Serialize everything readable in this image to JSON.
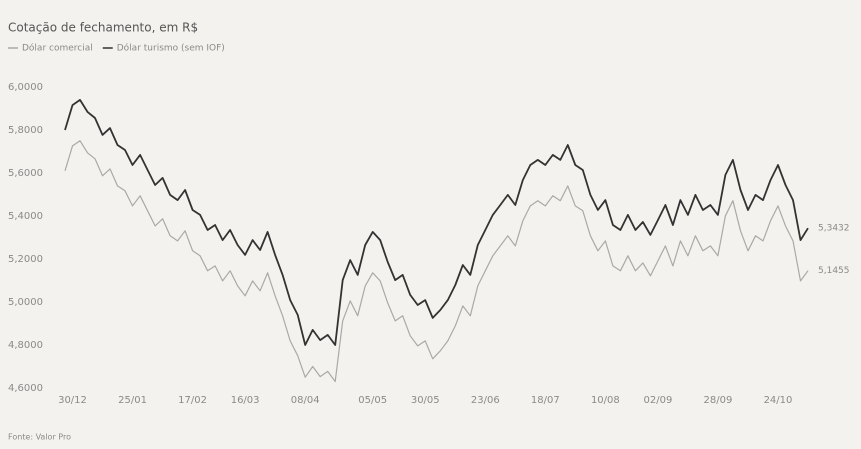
{
  "chart_data": {
    "type": "line",
    "subtitle": "Cotação de fechamento, em R$",
    "source": "Fonte: Valor Pro",
    "legend": "top-left",
    "xlim": [
      0,
      99
    ],
    "xticks": [
      {
        "value": 1,
        "label": "30/12"
      },
      {
        "value": 9,
        "label": "25/01"
      },
      {
        "value": 17,
        "label": "17/02"
      },
      {
        "value": 24,
        "label": "16/03"
      },
      {
        "value": 32,
        "label": "08/04"
      },
      {
        "value": 41,
        "label": "05/05"
      },
      {
        "value": 48,
        "label": "30/05"
      },
      {
        "value": 56,
        "label": "23/06"
      },
      {
        "value": 64,
        "label": "18/07"
      },
      {
        "value": 72,
        "label": "10/08"
      },
      {
        "value": 79,
        "label": "02/09"
      },
      {
        "value": 87,
        "label": "28/09"
      },
      {
        "value": 95,
        "label": "24/10"
      }
    ],
    "ylim": [
      4.6,
      6.0
    ],
    "yticks": [
      {
        "value": 6.0,
        "label": "6,0000"
      },
      {
        "value": 5.8,
        "label": "5,8000"
      },
      {
        "value": 5.6,
        "label": "5,6000"
      },
      {
        "value": 5.4,
        "label": "5,4000"
      },
      {
        "value": 5.2,
        "label": "5,2000"
      },
      {
        "value": 5.0,
        "label": "5,0000"
      },
      {
        "value": 4.8,
        "label": "4,8000"
      },
      {
        "value": 4.6,
        "label": "4,6000"
      }
    ],
    "series": [
      {
        "name": "Dólar comercial",
        "color": "#a9a9a9",
        "values": [
          5.61,
          5.726,
          5.75,
          5.694,
          5.666,
          5.587,
          5.619,
          5.54,
          5.517,
          5.447,
          5.494,
          5.424,
          5.354,
          5.387,
          5.308,
          5.284,
          5.331,
          5.238,
          5.215,
          5.145,
          5.168,
          5.098,
          5.145,
          5.075,
          5.029,
          5.098,
          5.052,
          5.136,
          5.029,
          4.936,
          4.819,
          4.75,
          4.65,
          4.7,
          4.653,
          4.677,
          4.63,
          4.912,
          5.005,
          4.936,
          5.075,
          5.136,
          5.098,
          4.996,
          4.912,
          4.936,
          4.843,
          4.796,
          4.819,
          4.736,
          4.773,
          4.819,
          4.889,
          4.982,
          4.936,
          5.075,
          5.145,
          5.215,
          5.261,
          5.308,
          5.261,
          5.377,
          5.447,
          5.471,
          5.447,
          5.494,
          5.471,
          5.54,
          5.447,
          5.424,
          5.308,
          5.238,
          5.284,
          5.168,
          5.145,
          5.215,
          5.145,
          5.182,
          5.122,
          5.191,
          5.261,
          5.168,
          5.284,
          5.215,
          5.308,
          5.238,
          5.261,
          5.215,
          5.401,
          5.471,
          5.331,
          5.238,
          5.308,
          5.284,
          5.377,
          5.447,
          5.354,
          5.284,
          5.098,
          5.1455
        ],
        "value_labels": [
          null,
          null,
          null,
          null,
          null,
          null,
          null,
          null,
          null,
          null,
          null,
          null,
          null,
          null,
          null,
          null,
          null,
          null,
          null,
          null,
          null,
          null,
          null,
          null,
          null,
          null,
          null,
          null,
          null,
          null,
          null,
          null,
          null,
          null,
          null,
          null,
          null,
          null,
          null,
          null,
          null,
          null,
          null,
          null,
          null,
          null,
          null,
          null,
          null,
          null,
          null,
          null,
          null,
          null,
          null,
          null,
          null,
          null,
          null,
          null,
          null,
          null,
          null,
          null,
          null,
          null,
          null,
          null,
          null,
          null,
          null,
          null,
          null,
          null,
          null,
          null,
          null,
          null,
          null,
          null,
          null,
          null,
          null,
          null,
          null,
          null,
          null,
          null,
          null,
          null,
          null,
          null,
          null,
          null,
          null,
          null,
          null,
          null,
          null,
          "5,1455"
        ]
      },
      {
        "name": "Dólar turismo (sem IOF)",
        "color": "#333333",
        "values": [
          5.8,
          5.916,
          5.94,
          5.884,
          5.856,
          5.777,
          5.809,
          5.73,
          5.707,
          5.637,
          5.684,
          5.614,
          5.544,
          5.577,
          5.498,
          5.474,
          5.521,
          5.428,
          5.405,
          5.335,
          5.358,
          5.288,
          5.335,
          5.265,
          5.219,
          5.288,
          5.242,
          5.326,
          5.219,
          5.126,
          5.009,
          4.94,
          4.8,
          4.87,
          4.823,
          4.847,
          4.8,
          5.102,
          5.195,
          5.126,
          5.265,
          5.326,
          5.288,
          5.186,
          5.102,
          5.126,
          5.033,
          4.986,
          5.009,
          4.926,
          4.963,
          5.009,
          5.079,
          5.172,
          5.126,
          5.265,
          5.335,
          5.405,
          5.451,
          5.498,
          5.451,
          5.567,
          5.637,
          5.661,
          5.637,
          5.684,
          5.661,
          5.73,
          5.637,
          5.614,
          5.498,
          5.428,
          5.474,
          5.358,
          5.335,
          5.405,
          5.335,
          5.372,
          5.312,
          5.381,
          5.451,
          5.358,
          5.474,
          5.405,
          5.498,
          5.428,
          5.451,
          5.405,
          5.591,
          5.661,
          5.521,
          5.428,
          5.498,
          5.474,
          5.567,
          5.637,
          5.544,
          5.474,
          5.288,
          5.3432
        ],
        "value_labels": [
          null,
          null,
          null,
          null,
          null,
          null,
          null,
          null,
          null,
          null,
          null,
          null,
          null,
          null,
          null,
          null,
          null,
          null,
          null,
          null,
          null,
          null,
          null,
          null,
          null,
          null,
          null,
          null,
          null,
          null,
          null,
          null,
          null,
          null,
          null,
          null,
          null,
          null,
          null,
          null,
          null,
          null,
          null,
          null,
          null,
          null,
          null,
          null,
          null,
          null,
          null,
          null,
          null,
          null,
          null,
          null,
          null,
          null,
          null,
          null,
          null,
          null,
          null,
          null,
          null,
          null,
          null,
          null,
          null,
          null,
          null,
          null,
          null,
          null,
          null,
          null,
          null,
          null,
          null,
          null,
          null,
          null,
          null,
          null,
          null,
          null,
          null,
          null,
          null,
          null,
          null,
          null,
          null,
          null,
          null,
          null,
          null,
          null,
          null,
          "5,3432"
        ]
      }
    ]
  }
}
